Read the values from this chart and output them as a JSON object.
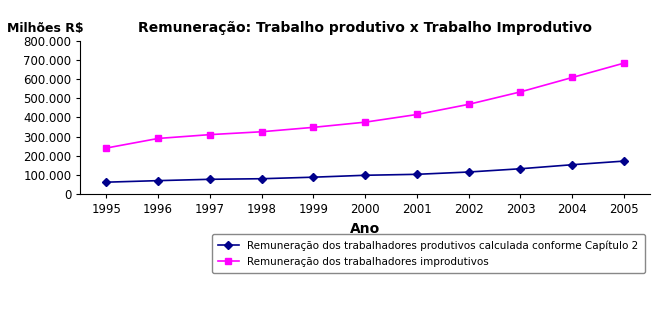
{
  "title": "Remuneração: Trabalho produtivo x Trabalho Improdutivo",
  "ylabel_annotation": "Milhões R$",
  "xlabel": "Ano",
  "years": [
    1995,
    1996,
    1997,
    1998,
    1999,
    2000,
    2001,
    2002,
    2003,
    2004,
    2005
  ],
  "productive": [
    62000,
    70000,
    77000,
    80000,
    88000,
    98000,
    103000,
    115000,
    132000,
    153000,
    172000
  ],
  "unproductive": [
    240000,
    290000,
    310000,
    325000,
    348000,
    375000,
    415000,
    468000,
    533000,
    608000,
    683000
  ],
  "productive_color": "#00008B",
  "unproductive_color": "#FF00FF",
  "productive_label": "Remuneração dos trabalhadores produtivos calculada conforme Capítulo 2",
  "unproductive_label": "Remuneração dos trabalhadores improdutivos",
  "ylim": [
    0,
    800000
  ],
  "yticks": [
    0,
    100000,
    200000,
    300000,
    400000,
    500000,
    600000,
    700000,
    800000
  ],
  "background_color": "#ffffff"
}
